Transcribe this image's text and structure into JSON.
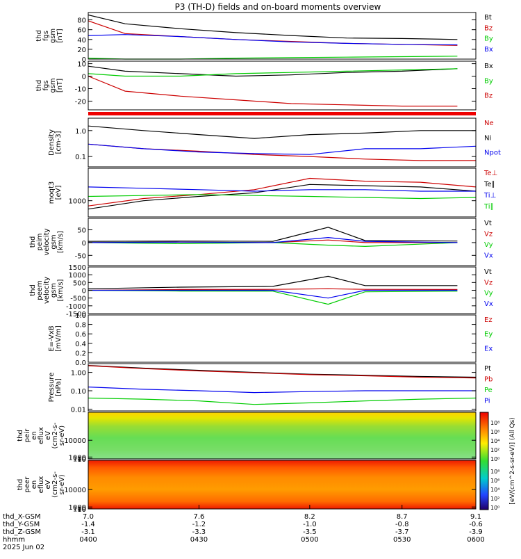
{
  "chart_data": {
    "title": "P3 (TH-D) fields and on-board moments overview",
    "type": "line",
    "panels": [
      {
        "id": "fgs-mag",
        "type": "line",
        "ylabel": [
          "thd",
          "fgs",
          "gsm",
          "[nT]"
        ],
        "yticks": [
          "0",
          "20",
          "40",
          "60",
          "80"
        ],
        "ylim": [
          0,
          95
        ],
        "series": [
          {
            "name": "Bt",
            "color": "#000000",
            "x": [
              7.0,
              7.2,
              7.5,
              7.8,
              8.1,
              8.4,
              8.7,
              9.0
            ],
            "values": [
              90,
              72,
              62,
              54,
              48,
              43,
              42,
              40
            ]
          },
          {
            "name": "Bz",
            "color": "#cc0000",
            "x": [
              7.0,
              7.2,
              7.5,
              7.8,
              8.1,
              8.4,
              8.7,
              9.0
            ],
            "values": [
              78,
              52,
              46,
              40,
              36,
              32,
              30,
              28
            ]
          },
          {
            "name": "By",
            "color": "#00cc00",
            "x": [
              7.0,
              7.2,
              7.5,
              7.8,
              8.1,
              8.4,
              8.7,
              9.0
            ],
            "values": [
              2,
              0,
              0,
              2,
              3,
              4,
              5,
              6
            ]
          },
          {
            "name": "Bx",
            "color": "#0000ee",
            "x": [
              7.0,
              7.2,
              7.5,
              7.8,
              8.1,
              8.4,
              8.7,
              9.0
            ],
            "values": [
              48,
              50,
              46,
              40,
              35,
              32,
              30,
              29
            ]
          }
        ]
      },
      {
        "id": "fgs-detrended",
        "type": "line",
        "ylabel": [
          "thd",
          "fgs",
          "gsm",
          "[nT]"
        ],
        "yticks": [
          "-20",
          "-10",
          "0",
          "10"
        ],
        "ylim": [
          -27,
          12
        ],
        "series": [
          {
            "name": "Bx",
            "color": "#000000",
            "x": [
              7.0,
              7.2,
              7.5,
              7.8,
              8.1,
              8.4,
              8.7,
              9.0
            ],
            "values": [
              8,
              4,
              2,
              0,
              1,
              3,
              4,
              6
            ]
          },
          {
            "name": "By",
            "color": "#00cc00",
            "x": [
              7.0,
              7.2,
              7.5,
              7.8,
              8.1,
              8.4,
              8.7,
              9.0
            ],
            "values": [
              2,
              0,
              0,
              2,
              3,
              4,
              5,
              6
            ]
          },
          {
            "name": "Bz",
            "color": "#cc0000",
            "x": [
              7.0,
              7.2,
              7.5,
              7.8,
              8.1,
              8.4,
              8.7,
              9.0
            ],
            "values": [
              0,
              -12,
              -16,
              -19,
              -22,
              -23,
              -24,
              -24
            ]
          }
        ]
      },
      {
        "id": "density",
        "type": "line",
        "log": true,
        "ylabel": [
          "Density",
          "[cm-3]"
        ],
        "yticks": [
          "0.1",
          "1.0"
        ],
        "ylim": [
          0.04,
          3
        ],
        "series": [
          {
            "name": "Ne",
            "color": "#cc0000",
            "x": [
              7.0,
              7.3,
              7.6,
              7.9,
              8.2,
              8.5,
              8.8,
              9.1
            ],
            "values": [
              0.3,
              0.2,
              0.16,
              0.12,
              0.1,
              0.08,
              0.07,
              0.07
            ]
          },
          {
            "name": "Ni",
            "color": "#000000",
            "x": [
              7.0,
              7.3,
              7.6,
              7.9,
              8.2,
              8.5,
              8.8,
              9.1
            ],
            "values": [
              1.5,
              1.0,
              0.7,
              0.5,
              0.7,
              0.8,
              1.0,
              1.0
            ]
          },
          {
            "name": "Npot",
            "color": "#0000ee",
            "x": [
              7.0,
              7.3,
              7.6,
              7.9,
              8.2,
              8.5,
              8.8,
              9.1
            ],
            "values": [
              0.3,
              0.2,
              0.15,
              0.13,
              0.12,
              0.2,
              0.2,
              0.25
            ]
          }
        ]
      },
      {
        "id": "temperature",
        "type": "line",
        "log": true,
        "ylabel": [
          "moqt3",
          "[eV]"
        ],
        "yticks": [
          "1000"
        ],
        "ylim": [
          500,
          4000
        ],
        "series": [
          {
            "name": "Te⊥",
            "color": "#cc0000",
            "x": [
              7.0,
              7.3,
              7.6,
              7.9,
              8.2,
              8.5,
              8.8,
              9.1
            ],
            "values": [
              800,
              1100,
              1300,
              1600,
              2600,
              2300,
              2200,
              1800
            ]
          },
          {
            "name": "Te∥",
            "color": "#000000",
            "x": [
              7.0,
              7.3,
              7.6,
              7.9,
              8.2,
              8.5,
              8.8,
              9.1
            ],
            "values": [
              700,
              1000,
              1200,
              1400,
              2000,
              1900,
              1800,
              1500
            ]
          },
          {
            "name": "Ti⊥",
            "color": "#0000ee",
            "x": [
              7.0,
              7.3,
              7.6,
              7.9,
              8.2,
              8.5,
              8.8,
              9.1
            ],
            "values": [
              1800,
              1700,
              1600,
              1500,
              1600,
              1600,
              1500,
              1500
            ]
          },
          {
            "name": "Ti∥",
            "color": "#00cc00",
            "x": [
              7.0,
              7.3,
              7.6,
              7.9,
              8.2,
              8.5,
              8.8,
              9.1
            ],
            "values": [
              1200,
              1250,
              1300,
              1250,
              1200,
              1150,
              1100,
              1150
            ]
          }
        ]
      },
      {
        "id": "peim-velocity",
        "type": "line",
        "ylabel": [
          "thd",
          "peim",
          "velocity",
          "gsm",
          "[km/s]"
        ],
        "yticks": [
          "-50",
          "0",
          "50"
        ],
        "ylim": [
          -90,
          95
        ],
        "series": [
          {
            "name": "Vt",
            "color": "#000000",
            "x": [
              7.0,
              7.5,
              8.0,
              8.3,
              8.5,
              9.0
            ],
            "values": [
              5,
              6,
              5,
              60,
              8,
              6
            ]
          },
          {
            "name": "Vz",
            "color": "#cc0000",
            "x": [
              7.0,
              7.5,
              8.0,
              8.3,
              8.5,
              9.0
            ],
            "values": [
              0,
              2,
              0,
              10,
              0,
              0
            ]
          },
          {
            "name": "Vy",
            "color": "#00cc00",
            "x": [
              7.0,
              7.5,
              8.0,
              8.3,
              8.5,
              9.0
            ],
            "values": [
              0,
              -4,
              0,
              -10,
              -15,
              0
            ]
          },
          {
            "name": "Vx",
            "color": "#0000ee",
            "x": [
              7.0,
              7.5,
              8.0,
              8.3,
              8.5,
              9.0
            ],
            "values": [
              0,
              2,
              0,
              20,
              5,
              0
            ]
          }
        ]
      },
      {
        "id": "peem-velocity",
        "type": "line",
        "ylabel": [
          "thd",
          "peem",
          "velocity",
          "gsm",
          "[km/s]"
        ],
        "yticks": [
          "-1500",
          "-1000",
          "-500",
          "0",
          "500",
          "1000",
          "1500"
        ],
        "ylim": [
          -1500,
          1500
        ],
        "series": [
          {
            "name": "Vt",
            "color": "#000000",
            "x": [
              7.0,
              7.5,
              8.0,
              8.3,
              8.5,
              9.0
            ],
            "values": [
              100,
              200,
              250,
              900,
              300,
              300
            ]
          },
          {
            "name": "Vz",
            "color": "#cc0000",
            "x": [
              7.0,
              7.5,
              8.0,
              8.3,
              8.5,
              9.0
            ],
            "values": [
              0,
              50,
              60,
              100,
              60,
              50
            ]
          },
          {
            "name": "Vy",
            "color": "#00cc00",
            "x": [
              7.0,
              7.5,
              8.0,
              8.3,
              8.5,
              9.0
            ],
            "values": [
              0,
              -50,
              -60,
              -900,
              -100,
              -60
            ]
          },
          {
            "name": "Vx",
            "color": "#0000ee",
            "x": [
              7.0,
              7.5,
              8.0,
              8.3,
              8.5,
              9.0
            ],
            "values": [
              0,
              0,
              0,
              -500,
              0,
              0
            ]
          }
        ]
      },
      {
        "id": "efield",
        "type": "line",
        "ylabel": [
          "E=-VxB",
          "[mV/m]"
        ],
        "yticks": [
          "0.0",
          "0.2",
          "0.4",
          "0.6",
          "0.8",
          "1.0"
        ],
        "ylim": [
          0,
          1
        ],
        "series": [
          {
            "name": "Ez",
            "color": "#cc0000",
            "x": [],
            "values": []
          },
          {
            "name": "Ey",
            "color": "#00cc00",
            "x": [],
            "values": []
          },
          {
            "name": "Ex",
            "color": "#0000ee",
            "x": [],
            "values": []
          }
        ]
      },
      {
        "id": "pressure",
        "type": "line",
        "log": true,
        "ylabel": [
          "Pressure",
          "[nPa]"
        ],
        "yticks": [
          "0.01",
          "0.10",
          "1.00"
        ],
        "ylim": [
          0.008,
          3
        ],
        "series": [
          {
            "name": "Pt",
            "color": "#000000",
            "x": [
              7.0,
              7.3,
              7.6,
              7.9,
              8.2,
              8.5,
              8.8,
              9.1
            ],
            "values": [
              2.4,
              1.7,
              1.3,
              1.0,
              0.8,
              0.7,
              0.6,
              0.55
            ]
          },
          {
            "name": "Pb",
            "color": "#cc0000",
            "x": [
              7.0,
              7.3,
              7.6,
              7.9,
              8.2,
              8.5,
              8.8,
              9.1
            ],
            "values": [
              2.3,
              1.6,
              1.2,
              0.95,
              0.75,
              0.65,
              0.55,
              0.5
            ]
          },
          {
            "name": "Pe",
            "color": "#00cc00",
            "x": [
              7.0,
              7.3,
              7.6,
              7.9,
              8.2,
              8.5,
              8.8,
              9.1
            ],
            "values": [
              0.04,
              0.035,
              0.028,
              0.018,
              0.022,
              0.028,
              0.035,
              0.04
            ]
          },
          {
            "name": "Pi",
            "color": "#0000ee",
            "x": [
              7.0,
              7.3,
              7.6,
              7.9,
              8.2,
              8.5,
              8.8,
              9.1
            ],
            "values": [
              0.16,
              0.12,
              0.1,
              0.08,
              0.09,
              0.1,
              0.1,
              0.1
            ]
          }
        ]
      },
      {
        "id": "peir-spectrogram",
        "type": "heatmap",
        "ylabel": [
          "thd",
          "peir",
          "en",
          "eflux",
          "eV",
          "(cm2-s-",
          "sr-eV)"
        ],
        "yticks": [
          "10",
          "100",
          "1000",
          "10000"
        ],
        "ylim": [
          6,
          25000
        ]
      },
      {
        "id": "peer-spectrogram",
        "type": "heatmap",
        "ylabel": [
          "thd",
          "peer",
          "en",
          "eflux",
          "eV",
          "(cm2-s-",
          "sr-eV)"
        ],
        "yticks": [
          "10",
          "100",
          "1000",
          "10000"
        ],
        "ylim": [
          6,
          25000
        ]
      }
    ],
    "colorbar": {
      "label": "[eV/(cm^2-s-sr-eV)] (All Qs)",
      "ticks_top": [
        "10⁸",
        "10⁶",
        "10⁴",
        "10²",
        "10⁰"
      ],
      "ticks_bottom": [
        "10⁸",
        "10⁶",
        "10⁴",
        "10²",
        "10⁰"
      ]
    },
    "xaxis": {
      "rows": [
        {
          "label": "thd_X-GSM",
          "values": [
            "7.0",
            "7.6",
            "8.2",
            "8.7",
            "9.1"
          ]
        },
        {
          "label": "thd_Y-GSM",
          "values": [
            "-1.4",
            "-1.2",
            "-1.0",
            "-0.8",
            "-0.6"
          ]
        },
        {
          "label": "thd_Z-GSM",
          "values": [
            "-3.1",
            "-3.3",
            "-3.5",
            "-3.7",
            "-3.9"
          ]
        },
        {
          "label": "hhmm",
          "values": [
            "0400",
            "0430",
            "0500",
            "0530",
            "0600"
          ]
        }
      ],
      "date": "2025 Jun 02"
    }
  }
}
